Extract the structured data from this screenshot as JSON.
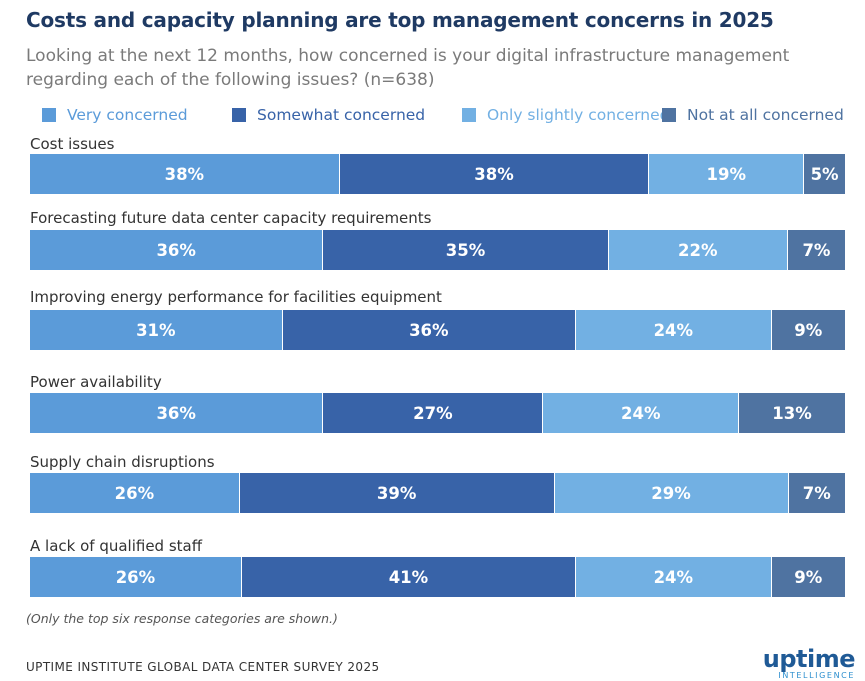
{
  "chart_data": {
    "type": "bar",
    "orientation": "horizontal",
    "stacked": true,
    "title": "Costs and capacity planning are top management concerns in 2025",
    "subtitle": "Looking at the next 12 months, how concerned is your digital infrastructure management regarding each of the following issues? (n=638)",
    "categories": [
      "Cost issues",
      "Forecasting future data center capacity requirements",
      "Improving energy performance for facilities equipment",
      "Power availability",
      "Supply chain disruptions",
      "A lack of qualified staff"
    ],
    "series": [
      {
        "name": "Very concerned",
        "color": "#5b9bd9",
        "values": [
          38,
          36,
          31,
          36,
          26,
          26
        ]
      },
      {
        "name": "Somewhat concerned",
        "color": "#3863a8",
        "values": [
          38,
          35,
          36,
          27,
          39,
          41
        ]
      },
      {
        "name": "Only slightly concerned",
        "color": "#72b0e3",
        "values": [
          19,
          22,
          24,
          24,
          29,
          24
        ]
      },
      {
        "name": "Not at all concerned",
        "color": "#4f73a1",
        "values": [
          5,
          7,
          9,
          13,
          7,
          9
        ]
      }
    ],
    "value_suffix": "%",
    "xlim": [
      0,
      100
    ],
    "legend_position": "top"
  },
  "footnote": "(Only the top six response categories are shown.)",
  "source": "UPTIME INSTITUTE GLOBAL DATA CENTER SURVEY 2025",
  "logo": {
    "word": "uptime",
    "sub": "INTELLIGENCE"
  }
}
